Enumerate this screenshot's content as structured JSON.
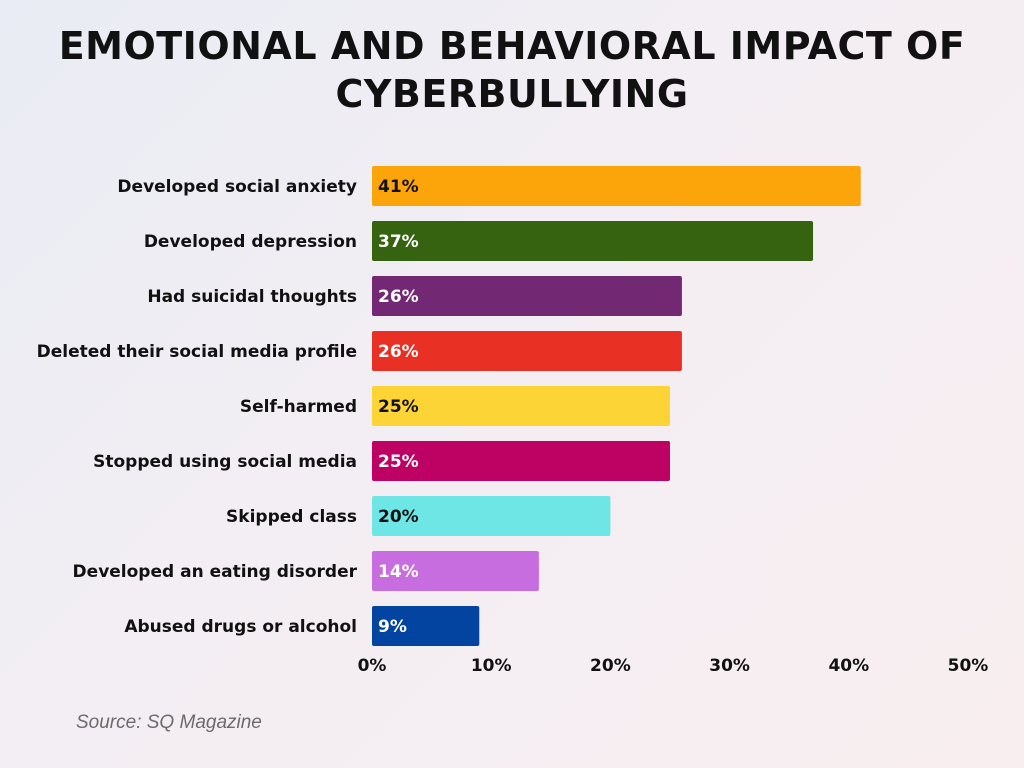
{
  "title_line1": "EMOTIONAL AND BEHAVIORAL IMPACT OF",
  "title_line2": "CYBERBULLYING",
  "source": "Source: SQ Magazine",
  "chart_data": {
    "type": "bar",
    "orientation": "horizontal",
    "title": "EMOTIONAL AND BEHAVIORAL IMPACT OF CYBERBULLYING",
    "xlabel": "",
    "ylabel": "",
    "xlim": [
      0,
      50
    ],
    "grid": false,
    "categories": [
      "Developed social anxiety",
      "Developed depression",
      "Had suicidal thoughts",
      "Deleted their social media profile",
      "Self-harmed",
      "Stopped using social media",
      "Skipped class",
      "Developed an eating disorder",
      "Abused drugs or alcohol"
    ],
    "values": [
      41,
      37,
      26,
      26,
      25,
      25,
      20,
      14,
      9
    ],
    "value_labels": [
      "41%",
      "37%",
      "26%",
      "26%",
      "25%",
      "25%",
      "20%",
      "14%",
      "9%"
    ],
    "colors": [
      "#fba50b",
      "#356310",
      "#732873",
      "#e83025",
      "#fdd435",
      "#bd0263",
      "#6fe6e6",
      "#c86de0",
      "#0444a1"
    ],
    "label_colors": [
      "#111111",
      "#ffffff",
      "#ffffff",
      "#ffffff",
      "#111111",
      "#ffffff",
      "#111111",
      "#ffffff",
      "#ffffff"
    ],
    "xticks": [
      0,
      10,
      20,
      30,
      40,
      50
    ],
    "xtick_labels": [
      "0%",
      "10%",
      "20%",
      "30%",
      "40%",
      "50%"
    ]
  }
}
